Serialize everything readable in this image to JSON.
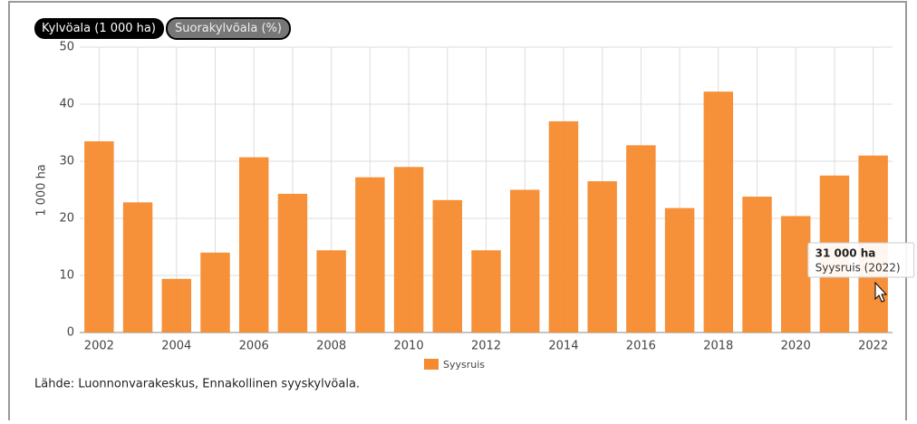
{
  "tabs": [
    "Kylvöala (1 000 ha)",
    "Suorakylvöala (%)"
  ],
  "chart_data": {
    "type": "bar",
    "ylabel": "1 000 ha",
    "categories": [
      "2002",
      null,
      "2004",
      null,
      "2006",
      null,
      "2008",
      null,
      "2010",
      null,
      "2012",
      null,
      "2014",
      null,
      "2016",
      null,
      "2018",
      null,
      "2020",
      null,
      "2022"
    ],
    "series": [
      {
        "name": "Syysruis",
        "color": "#f58a2e",
        "values": [
          33.5,
          22.8,
          9.4,
          14.0,
          30.7,
          24.3,
          14.4,
          27.2,
          29.0,
          23.2,
          14.4,
          25.0,
          37.0,
          26.5,
          32.8,
          21.8,
          42.2,
          23.8,
          20.4,
          27.5,
          31
        ]
      }
    ],
    "ylim": [
      0,
      50
    ],
    "yticks": [
      0,
      10,
      20,
      30,
      40,
      50
    ],
    "grid": true,
    "tooltip": {
      "value_label": "31 000 ha",
      "text": "Syysruis (2022)"
    }
  },
  "source": "Lähde: Luonnonvarakeskus, Ennakollinen syyskylvöala."
}
